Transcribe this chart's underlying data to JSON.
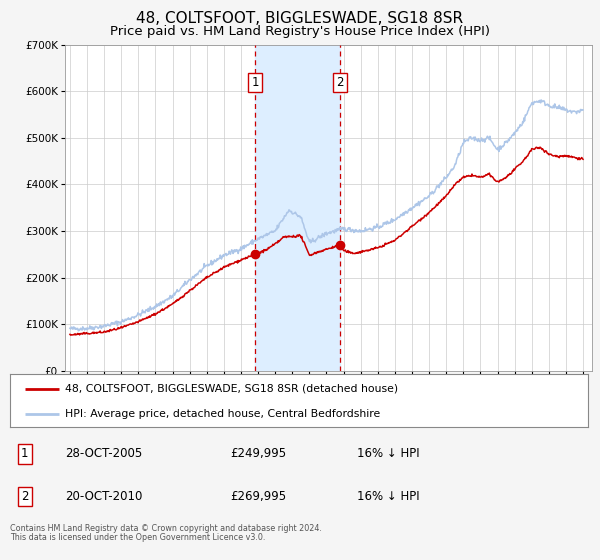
{
  "title": "48, COLTSFOOT, BIGGLESWADE, SG18 8SR",
  "subtitle": "Price paid vs. HM Land Registry's House Price Index (HPI)",
  "ylim": [
    0,
    700000
  ],
  "ytick_labels": [
    "£0",
    "£100K",
    "£200K",
    "£300K",
    "£400K",
    "£500K",
    "£600K",
    "£700K"
  ],
  "ytick_values": [
    0,
    100000,
    200000,
    300000,
    400000,
    500000,
    600000,
    700000
  ],
  "xlim_start": 1994.7,
  "xlim_end": 2025.5,
  "hpi_color": "#adc6e8",
  "price_color": "#cc0000",
  "sale1_date": 2005.82,
  "sale1_price": 249995,
  "sale1_label": "1",
  "sale2_date": 2010.8,
  "sale2_price": 269995,
  "sale2_label": "2",
  "shade_color": "#ddeeff",
  "vline_color": "#cc0000",
  "legend1_text": "48, COLTSFOOT, BIGGLESWADE, SG18 8SR (detached house)",
  "legend2_text": "HPI: Average price, detached house, Central Bedfordshire",
  "table_row1": [
    "1",
    "28-OCT-2005",
    "£249,995",
    "16% ↓ HPI"
  ],
  "table_row2": [
    "2",
    "20-OCT-2010",
    "£269,995",
    "16% ↓ HPI"
  ],
  "footnote1": "Contains HM Land Registry data © Crown copyright and database right 2024.",
  "footnote2": "This data is licensed under the Open Government Licence v3.0.",
  "background_color": "#f5f5f5",
  "plot_bg_color": "#ffffff",
  "grid_color": "#cccccc",
  "title_fontsize": 11,
  "subtitle_fontsize": 9.5
}
